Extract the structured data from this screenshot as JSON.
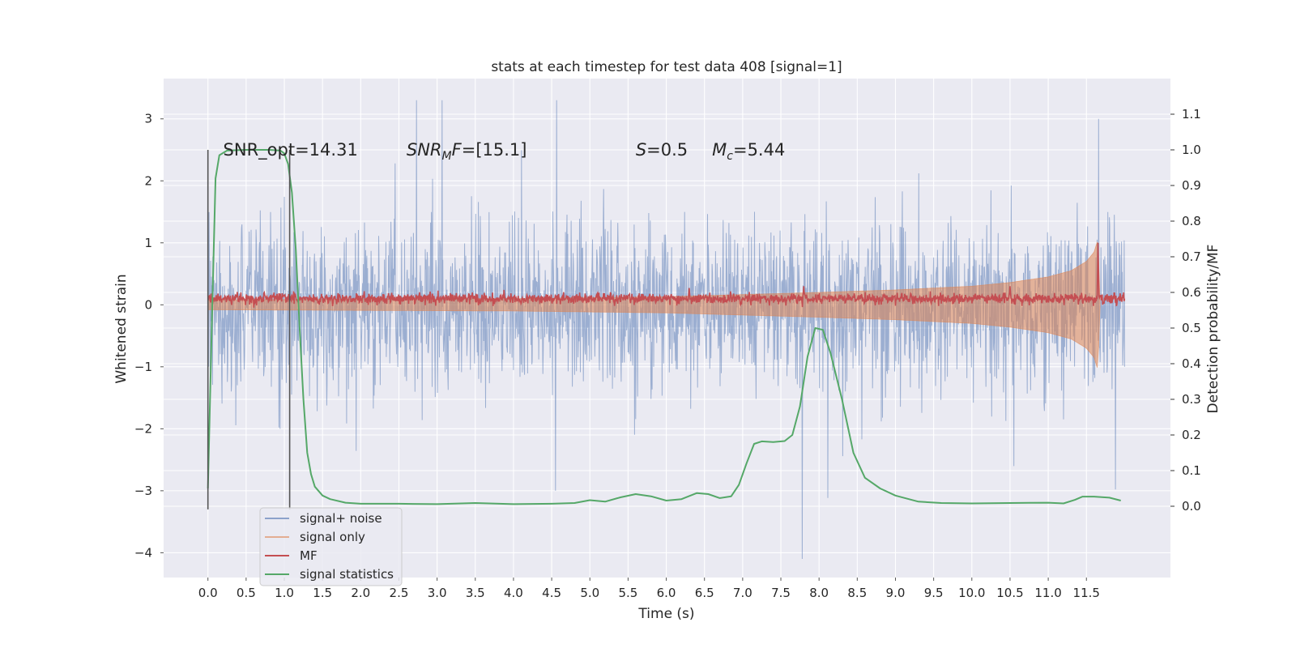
{
  "chart_data": {
    "type": "line",
    "title": "stats at each timestep for test data 408 [signal=1]",
    "xlabel": "Time (s)",
    "ylabel": "Whitened strain",
    "y2label": "Detection probability/MF",
    "xlim": [
      -0.58,
      12.6
    ],
    "ylim": [
      -4.4,
      3.65
    ],
    "y2lim": [
      -0.2,
      1.2
    ],
    "x_ticks": [
      0.0,
      0.5,
      1.0,
      1.5,
      2.0,
      2.5,
      3.0,
      3.5,
      4.0,
      4.5,
      5.0,
      5.5,
      6.0,
      6.5,
      7.0,
      7.5,
      8.0,
      8.5,
      9.0,
      9.5,
      10.0,
      10.5,
      11.0,
      11.5
    ],
    "x_tick_labels": [
      "0.0",
      "0.5",
      "1.0",
      "1.5",
      "2.0",
      "2.5",
      "3.0",
      "3.5",
      "4.0",
      "4.5",
      "5.0",
      "5.5",
      "6.0",
      "6.5",
      "7.0",
      "7.5",
      "8.0",
      "8.5",
      "9.0",
      "9.5",
      "10.0",
      "10.5",
      "11.0",
      "11.5"
    ],
    "y_ticks": [
      3,
      2,
      1,
      0,
      -1,
      -2,
      -3,
      -4
    ],
    "y_tick_labels": [
      "3",
      "2",
      "1",
      "0",
      "−1",
      "−2",
      "−3",
      "−4"
    ],
    "y2_ticks": [
      1.1,
      1.0,
      0.9,
      0.8,
      0.7,
      0.6,
      0.5,
      0.4,
      0.3,
      0.2,
      0.1,
      0.0
    ],
    "y2_tick_labels": [
      "1.1",
      "1.0",
      "0.9",
      "0.8",
      "0.7",
      "0.6",
      "0.5",
      "0.4",
      "0.3",
      "0.2",
      "0.1",
      "0.0"
    ],
    "grid": true,
    "legend_position": "lower-left",
    "annotations": [
      {
        "text": "SNR_opt=14.31",
        "x": 0.2,
        "y": 2.5
      },
      {
        "base": "SNR",
        "sub": "M",
        "tail": "F=[15.1]",
        "x": 2.6,
        "y": 2.5
      },
      {
        "base": "S",
        "sub": "",
        "tail": "=0.5",
        "x": 5.6,
        "y": 2.5
      },
      {
        "base": "M",
        "sub": "c",
        "tail": "=5.44",
        "x": 6.6,
        "y": 2.5
      }
    ],
    "vlines": [
      {
        "x": 0.0,
        "y_range": [
          -3.3,
          2.5
        ],
        "color": "#555555"
      },
      {
        "x": 1.07,
        "y_range": [
          -3.3,
          2.5
        ],
        "color": "#555555"
      }
    ],
    "series": [
      {
        "name": "signal+ noise",
        "color": "#4c72b0",
        "axis": "left",
        "x_range": [
          0.0,
          12.0
        ],
        "typical_range": [
          -1.2,
          1.3
        ],
        "max": 3.3,
        "min": -4.1
      },
      {
        "name": "signal only",
        "color": "#dd8452",
        "axis": "left",
        "x_range": [
          0.0,
          11.68
        ],
        "envelope": {
          "x": [
            0.0,
            2.0,
            4.0,
            6.0,
            8.0,
            9.0,
            10.0,
            10.5,
            11.0,
            11.3,
            11.5,
            11.6,
            11.65,
            11.68
          ],
          "amplitude": [
            0.08,
            0.09,
            0.1,
            0.13,
            0.2,
            0.24,
            0.3,
            0.36,
            0.45,
            0.55,
            0.7,
            0.85,
            1.05,
            0.0
          ]
        }
      },
      {
        "name": "MF",
        "color": "#c44e52",
        "axis": "left",
        "x_range": [
          0.0,
          12.0
        ],
        "baseline": 0.1,
        "noise_amplitude": 0.07,
        "peaks": [
          {
            "x": 11.65,
            "y": 1.0
          },
          {
            "x": 10.5,
            "y": 0.3
          },
          {
            "x": 6.3,
            "y": 0.27
          },
          {
            "x": 7.8,
            "y": 0.3
          }
        ]
      },
      {
        "name": "signal statistics",
        "color": "#55a868",
        "axis": "right",
        "x": [
          0.0,
          0.05,
          0.1,
          0.15,
          0.25,
          0.5,
          0.8,
          0.95,
          1.0,
          1.05,
          1.1,
          1.15,
          1.2,
          1.25,
          1.3,
          1.35,
          1.4,
          1.5,
          1.6,
          1.8,
          2.0,
          2.5,
          3.0,
          3.5,
          4.0,
          4.5,
          4.8,
          5.0,
          5.2,
          5.4,
          5.6,
          5.8,
          6.0,
          6.2,
          6.4,
          6.55,
          6.7,
          6.85,
          6.95,
          7.05,
          7.15,
          7.25,
          7.4,
          7.55,
          7.65,
          7.75,
          7.85,
          7.95,
          8.05,
          8.15,
          8.3,
          8.45,
          8.6,
          8.8,
          9.0,
          9.3,
          9.6,
          10.0,
          10.5,
          11.0,
          11.2,
          11.35,
          11.45,
          11.6,
          11.8,
          11.95
        ],
        "y": [
          0.05,
          0.5,
          0.92,
          0.985,
          0.998,
          1.0,
          1.0,
          0.998,
          0.99,
          0.96,
          0.88,
          0.72,
          0.5,
          0.3,
          0.15,
          0.09,
          0.055,
          0.03,
          0.02,
          0.01,
          0.007,
          0.007,
          0.006,
          0.009,
          0.006,
          0.007,
          0.009,
          0.017,
          0.013,
          0.025,
          0.034,
          0.028,
          0.016,
          0.02,
          0.037,
          0.034,
          0.023,
          0.028,
          0.06,
          0.12,
          0.175,
          0.182,
          0.18,
          0.183,
          0.2,
          0.28,
          0.42,
          0.5,
          0.495,
          0.43,
          0.3,
          0.15,
          0.08,
          0.05,
          0.03,
          0.013,
          0.009,
          0.008,
          0.009,
          0.01,
          0.008,
          0.018,
          0.027,
          0.027,
          0.024,
          0.016
        ]
      }
    ]
  }
}
